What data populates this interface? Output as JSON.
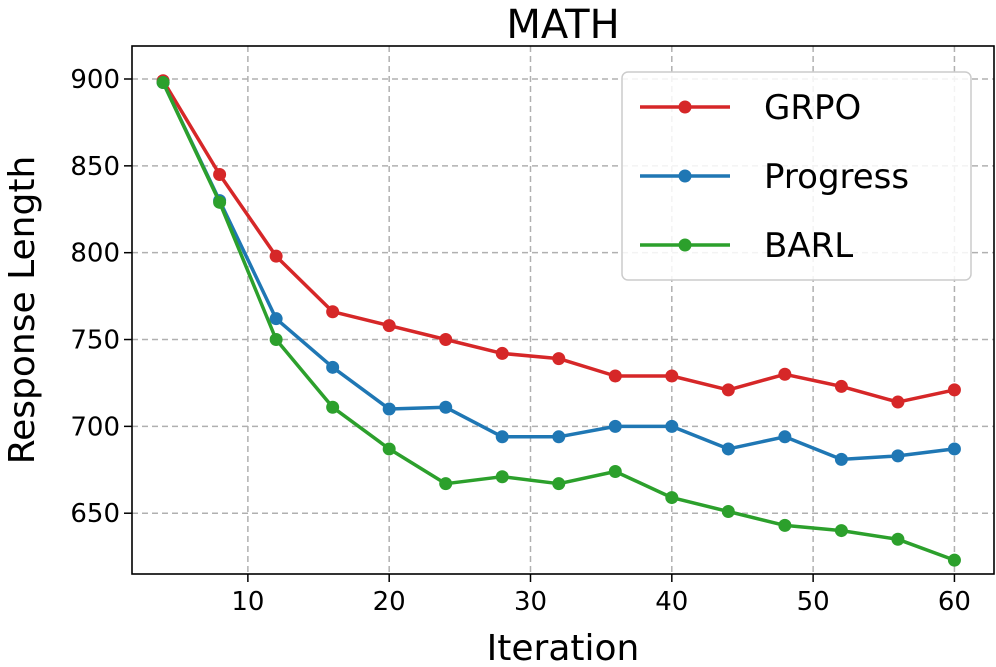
{
  "chart_data": {
    "type": "line",
    "title": "MATH",
    "xlabel": "Iteration",
    "ylabel": "Response Length",
    "xlim": [
      1.8,
      62.8
    ],
    "ylim": [
      615,
      919
    ],
    "xticks": [
      10,
      20,
      30,
      40,
      50,
      60
    ],
    "yticks": [
      650,
      700,
      750,
      800,
      850,
      900
    ],
    "grid": true,
    "legend_position": "top-right",
    "x": [
      4,
      8,
      12,
      16,
      20,
      24,
      28,
      32,
      36,
      40,
      44,
      48,
      52,
      56,
      60
    ],
    "series": [
      {
        "name": "GRPO",
        "color": "#d62728",
        "values": [
          899,
          845,
          798,
          766,
          758,
          750,
          742,
          739,
          729,
          729,
          721,
          730,
          723,
          714,
          721
        ]
      },
      {
        "name": "Progress",
        "color": "#1f77b4",
        "values": [
          898,
          830,
          762,
          734,
          710,
          711,
          694,
          694,
          700,
          700,
          687,
          694,
          681,
          683,
          687
        ]
      },
      {
        "name": "BARL",
        "color": "#2ca02c",
        "values": [
          898,
          829,
          750,
          711,
          687,
          667,
          671,
          667,
          674,
          659,
          651,
          643,
          640,
          635,
          623
        ]
      }
    ]
  }
}
